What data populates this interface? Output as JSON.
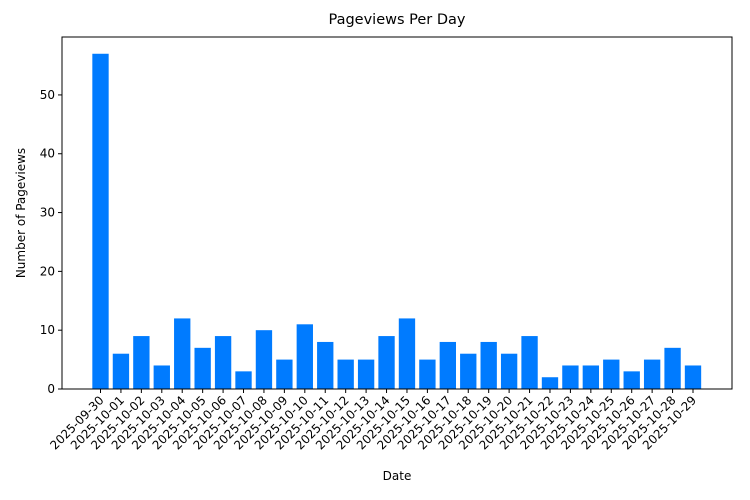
{
  "chart_data": {
    "type": "bar",
    "title": "Pageviews Per Day",
    "xlabel": "Date",
    "ylabel": "Number of Pageviews",
    "categories": [
      "2025-09-30",
      "2025-10-01",
      "2025-10-02",
      "2025-10-03",
      "2025-10-04",
      "2025-10-05",
      "2025-10-06",
      "2025-10-07",
      "2025-10-08",
      "2025-10-09",
      "2025-10-10",
      "2025-10-11",
      "2025-10-12",
      "2025-10-13",
      "2025-10-14",
      "2025-10-15",
      "2025-10-16",
      "2025-10-17",
      "2025-10-18",
      "2025-10-19",
      "2025-10-20",
      "2025-10-21",
      "2025-10-22",
      "2025-10-23",
      "2025-10-24",
      "2025-10-25",
      "2025-10-26",
      "2025-10-27",
      "2025-10-28",
      "2025-10-29"
    ],
    "values": [
      57,
      6,
      9,
      4,
      12,
      7,
      9,
      3,
      10,
      5,
      11,
      8,
      5,
      5,
      9,
      12,
      5,
      8,
      6,
      8,
      6,
      9,
      2,
      4,
      4,
      5,
      3,
      5,
      7,
      4
    ],
    "yticks": [
      0,
      10,
      20,
      30,
      40,
      50
    ],
    "ylim": [
      0,
      59.85
    ],
    "bar_color": "#007bff",
    "grid": false,
    "legend": null,
    "xtick_rotation": 45
  }
}
